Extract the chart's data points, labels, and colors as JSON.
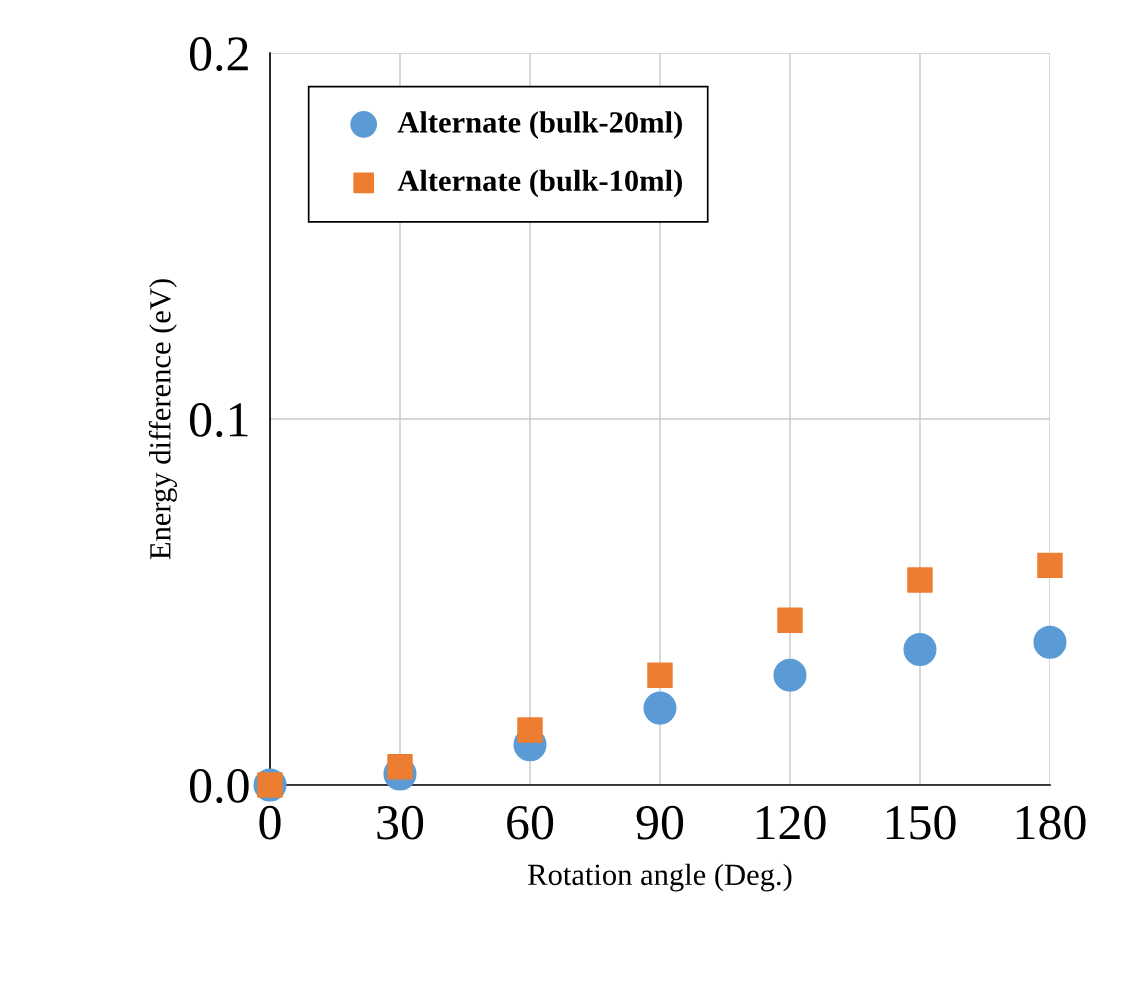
{
  "chart_data": {
    "type": "scatter",
    "xlabel": "Rotation angle (Deg.)",
    "ylabel": "Energy difference (eV)",
    "x": [
      0,
      30,
      60,
      90,
      120,
      150,
      180
    ],
    "series": [
      {
        "name": "Alternate (bulk-20ml)",
        "color": "#5b9bd5",
        "marker": "circle",
        "values": [
          0.0,
          0.003,
          0.011,
          0.021,
          0.03,
          0.037,
          0.039
        ]
      },
      {
        "name": "Alternate (bulk-10ml)",
        "color": "#ed7d31",
        "marker": "square",
        "values": [
          0.0,
          0.005,
          0.015,
          0.03,
          0.045,
          0.056,
          0.06
        ]
      }
    ],
    "xlim": [
      0,
      180
    ],
    "xticks": [
      0,
      30,
      60,
      90,
      120,
      150,
      180
    ],
    "ylim": [
      0,
      0.2
    ],
    "yticks": [
      {
        "value": 0,
        "label": "0.0"
      },
      {
        "value": 0.1,
        "label": "0.1"
      },
      {
        "value": 0.2,
        "label": "0.2"
      }
    ],
    "grid": true,
    "legend": "top left"
  }
}
